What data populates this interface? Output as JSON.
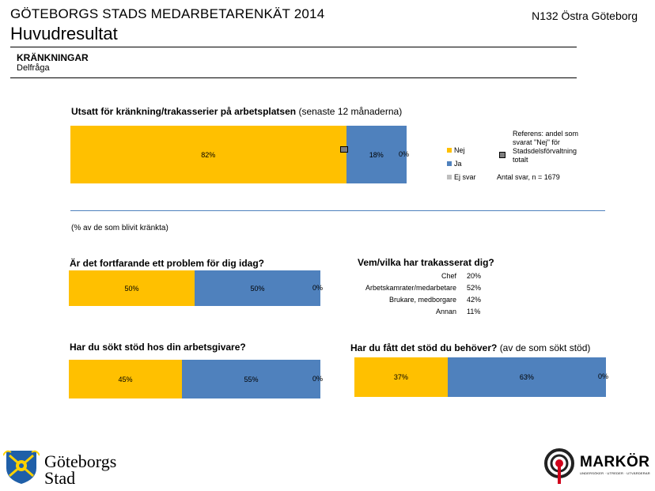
{
  "header": {
    "title": "GÖTEBORGS STADS MEDARBETARENKÄT 2014",
    "subtitle": "Huvudresultat",
    "unit": "N132 Östra Göteborg",
    "section": "KRÄNKNINGAR",
    "subsection": "Delfråga"
  },
  "colors": {
    "nej": "#FFC000",
    "ja": "#4F81BD",
    "ej_svar": "#BFBFBF",
    "reference": "#7F7F7F"
  },
  "q1": {
    "question_bold": "Utsatt för kränkning/trakasserier på arbetsplatsen",
    "question_normal": "(senaste 12 månaderna)",
    "labels": [
      "82%",
      "18%",
      "0%"
    ]
  },
  "legend": {
    "nej": "Nej",
    "ja": "Ja",
    "ej_svar": "Ej svar",
    "reference": "Referens: andel som svarat \"Nej\" för Stadsdelsförvaltning totalt",
    "n": "Antal svar, n = 1679"
  },
  "note": "(% av de som blivit kränkta)",
  "q2": {
    "question": "Är det fortfarande ett problem för dig idag?",
    "labels": [
      "50%",
      "50%",
      "0%"
    ]
  },
  "q3": {
    "question": "Vem/vilka har trakasserat dig?",
    "rows": [
      {
        "label": "Chef",
        "value": "20%"
      },
      {
        "label": "Arbetskamrater/medarbetare",
        "value": "52%"
      },
      {
        "label": "Brukare, medborgare",
        "value": "42%"
      },
      {
        "label": "Annan",
        "value": "11%"
      }
    ]
  },
  "q4": {
    "question": "Har du sökt stöd hos din arbetsgivare?",
    "labels": [
      "45%",
      "55%",
      "0%"
    ]
  },
  "q5": {
    "question_bold": "Har du fått det stöd du behöver?",
    "question_normal": "(av de som sökt stöd)",
    "labels": [
      "37%",
      "63%",
      "0%"
    ]
  },
  "logos": {
    "goteborg_line1": "Göteborgs",
    "goteborg_line2": "Stad",
    "markor": "MARKÖR",
    "markor_tag": "UNDERSÖKER · UTREDER · UTVÄRDERAR"
  },
  "chart_data": [
    {
      "type": "bar",
      "orientation": "horizontal-stacked",
      "categories": [
        "Utsatt för kränkning/trakasserier på arbetsplatsen"
      ],
      "series": [
        {
          "name": "Nej",
          "values": [
            82
          ]
        },
        {
          "name": "Ja",
          "values": [
            18
          ]
        },
        {
          "name": "Ej svar",
          "values": [
            0
          ]
        }
      ],
      "reference": 81.5,
      "xlim": [
        0,
        100
      ]
    },
    {
      "type": "bar",
      "orientation": "horizontal-stacked",
      "categories": [
        "Är det fortfarande ett problem för dig idag?"
      ],
      "series": [
        {
          "name": "Nej",
          "values": [
            50
          ]
        },
        {
          "name": "Ja",
          "values": [
            50
          ]
        },
        {
          "name": "Ej svar",
          "values": [
            0
          ]
        }
      ],
      "xlim": [
        0,
        100
      ]
    },
    {
      "type": "table",
      "categories": [
        "Chef",
        "Arbetskamrater/medarbetare",
        "Brukare, medborgare",
        "Annan"
      ],
      "values": [
        20,
        52,
        42,
        11
      ]
    },
    {
      "type": "bar",
      "orientation": "horizontal-stacked",
      "categories": [
        "Har du sökt stöd hos din arbetsgivare?"
      ],
      "series": [
        {
          "name": "Nej",
          "values": [
            45
          ]
        },
        {
          "name": "Ja",
          "values": [
            55
          ]
        },
        {
          "name": "Ej svar",
          "values": [
            0
          ]
        }
      ],
      "xlim": [
        0,
        100
      ]
    },
    {
      "type": "bar",
      "orientation": "horizontal-stacked",
      "categories": [
        "Har du fått det stöd du behöver?"
      ],
      "series": [
        {
          "name": "Nej",
          "values": [
            37
          ]
        },
        {
          "name": "Ja",
          "values": [
            63
          ]
        },
        {
          "name": "Ej svar",
          "values": [
            0
          ]
        }
      ],
      "xlim": [
        0,
        100
      ]
    }
  ]
}
